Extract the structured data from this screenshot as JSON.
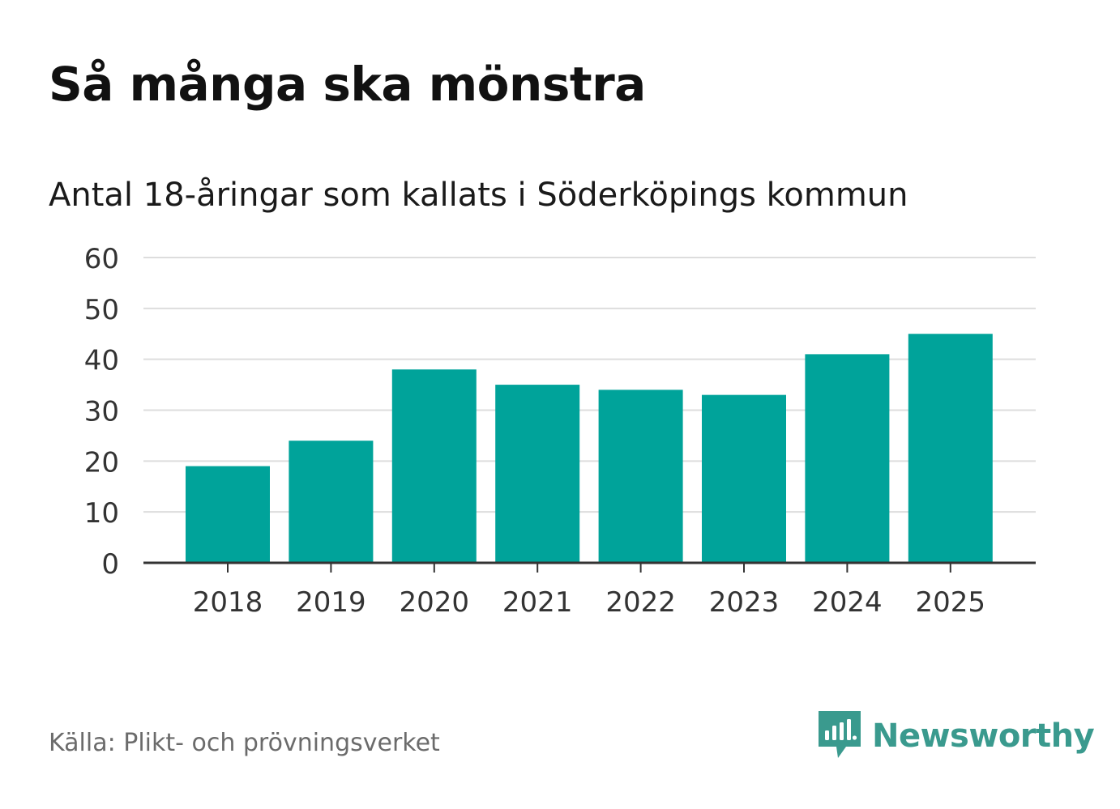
{
  "title": "Så många ska mönstra",
  "subtitle": "Antal 18-åringar som kallats i Söderköpings kommun",
  "source": "Källa: Plikt- och prövningsverket",
  "brand": {
    "name": "Newsworthy",
    "icon": "newsworthy-logo-icon",
    "color": "#3a9a8e"
  },
  "chart_data": {
    "type": "bar",
    "title": "Så många ska mönstra",
    "subtitle": "Antal 18-åringar som kallats i Söderköpings kommun",
    "xlabel": "",
    "ylabel": "",
    "categories": [
      "2018",
      "2019",
      "2020",
      "2021",
      "2022",
      "2023",
      "2024",
      "2025"
    ],
    "values": [
      19,
      24,
      38,
      35,
      34,
      33,
      41,
      45
    ],
    "ylim": [
      0,
      60
    ],
    "yticks": [
      0,
      10,
      20,
      30,
      40,
      50,
      60
    ],
    "grid": true,
    "legend": "none",
    "bar_color": "#00a39a",
    "grid_color": "#dddddd",
    "axis_color": "#333333",
    "tick_label_color": "#333333"
  }
}
